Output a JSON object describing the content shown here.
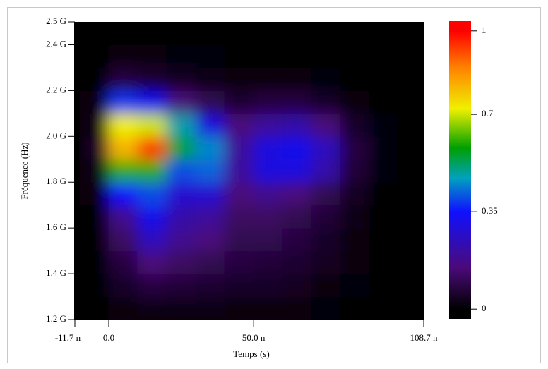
{
  "chart_data": {
    "type": "heatmap",
    "xlabel": "Temps (s)",
    "ylabel": "Fréquence (Hz)",
    "xlim": [
      -1.17e-08,
      1.087e-07
    ],
    "xticks": [
      {
        "value": -1.17e-08,
        "label": "-11.7 n"
      },
      {
        "value": 0,
        "label": "0.0"
      },
      {
        "value": 5e-08,
        "label": "50.0 n"
      },
      {
        "value": 1.087e-07,
        "label": "108.7 n"
      }
    ],
    "ylim": [
      1200000000,
      2500000000
    ],
    "yticks": [
      {
        "value": 1200000000,
        "label": "1.2 G"
      },
      {
        "value": 1400000000,
        "label": "1.4 G"
      },
      {
        "value": 1600000000,
        "label": "1.6 G"
      },
      {
        "value": 1800000000,
        "label": "1.8 G"
      },
      {
        "value": 2000000000,
        "label": "2.0 G"
      },
      {
        "value": 2200000000,
        "label": "2.2 G"
      },
      {
        "value": 2400000000,
        "label": "2.4 G"
      },
      {
        "value": 2500000000,
        "label": "2.5 G"
      }
    ],
    "x": [
      -5e-09,
      5e-09,
      1.5e-08,
      2.5e-08,
      3.5e-08,
      4.5e-08,
      5.5e-08,
      6.5e-08,
      7.5e-08,
      8.5e-08,
      9.5e-08,
      1.05e-07
    ],
    "y": [
      1250000000,
      1350000000,
      1450000000,
      1550000000,
      1650000000,
      1750000000,
      1850000000,
      1950000000,
      2050000000,
      2150000000,
      2250000000,
      2350000000,
      2450000000
    ],
    "z": [
      [
        0,
        0.02,
        0.03,
        0.03,
        0.03,
        0.02,
        0.02,
        0.02,
        0.01,
        0,
        0,
        0
      ],
      [
        0,
        0.05,
        0.08,
        0.07,
        0.06,
        0.05,
        0.05,
        0.04,
        0.02,
        0.01,
        0,
        0
      ],
      [
        0,
        0.08,
        0.15,
        0.12,
        0.1,
        0.08,
        0.07,
        0.06,
        0.04,
        0.02,
        0,
        0
      ],
      [
        0,
        0.12,
        0.25,
        0.18,
        0.15,
        0.1,
        0.1,
        0.08,
        0.05,
        0.02,
        0,
        0
      ],
      [
        0,
        0.18,
        0.32,
        0.22,
        0.2,
        0.12,
        0.12,
        0.1,
        0.07,
        0.03,
        0,
        0
      ],
      [
        0.02,
        0.35,
        0.4,
        0.28,
        0.28,
        0.15,
        0.18,
        0.15,
        0.1,
        0.04,
        0,
        0
      ],
      [
        0.03,
        0.6,
        0.6,
        0.4,
        0.42,
        0.2,
        0.3,
        0.3,
        0.22,
        0.07,
        0.01,
        0
      ],
      [
        0.04,
        0.8,
        0.95,
        0.55,
        0.45,
        0.2,
        0.3,
        0.32,
        0.25,
        0.08,
        0.01,
        0
      ],
      [
        0.03,
        0.72,
        0.7,
        0.48,
        0.3,
        0.15,
        0.2,
        0.22,
        0.15,
        0.05,
        0.01,
        0
      ],
      [
        0.02,
        0.38,
        0.32,
        0.15,
        0.1,
        0.06,
        0.08,
        0.08,
        0.05,
        0.02,
        0,
        0
      ],
      [
        0,
        0.08,
        0.06,
        0.04,
        0.03,
        0.02,
        0.02,
        0.02,
        0.01,
        0,
        0,
        0
      ],
      [
        0,
        0.02,
        0.02,
        0.01,
        0.01,
        0,
        0,
        0,
        0,
        0,
        0,
        0
      ],
      [
        0,
        0,
        0,
        0,
        0,
        0,
        0,
        0,
        0,
        0,
        0,
        0
      ]
    ],
    "zlim": [
      -0.035,
      1.035
    ],
    "zticks": [
      0,
      0.35,
      0.7,
      1
    ],
    "colorscale": [
      [
        0,
        "#000000"
      ],
      [
        0.15,
        "#4b0a7a"
      ],
      [
        0.35,
        "#1010ff"
      ],
      [
        0.47,
        "#00a0c0"
      ],
      [
        0.58,
        "#00a000"
      ],
      [
        0.72,
        "#f0f000"
      ],
      [
        0.87,
        "#ff8000"
      ],
      [
        1,
        "#ff0000"
      ]
    ]
  }
}
